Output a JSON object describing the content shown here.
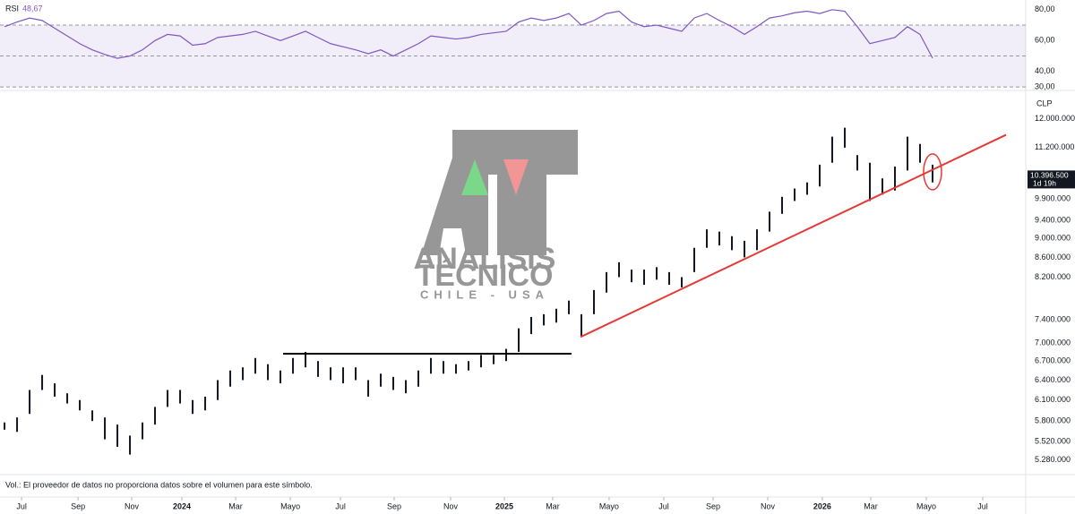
{
  "chart_data": [
    {
      "type": "line",
      "xlim": [
        -0.36,
        81.43
      ],
      "ylim": [
        28.3,
        85.1
      ],
      "yticks": [
        {
          "value": 80,
          "label": "80,00"
        },
        {
          "value": 60,
          "label": "60,00"
        },
        {
          "value": 40,
          "label": "40,00"
        },
        {
          "value": 30,
          "label": "30,00"
        }
      ],
      "band": [
        30,
        70
      ],
      "hlines": [
        70,
        50,
        30
      ],
      "last_value": {
        "value": 48.67,
        "label": "48,67"
      },
      "series": [
        {
          "name": "RSI",
          "color": "#7e57c2",
          "values": [
            69,
            72,
            74.6,
            73,
            68,
            63,
            58,
            54,
            51,
            48.5,
            50,
            54,
            60,
            64,
            63,
            57,
            58,
            62,
            63,
            64,
            66,
            63,
            60,
            63,
            66,
            62,
            58,
            56,
            54,
            51.5,
            54,
            50,
            54,
            58,
            63,
            62,
            61,
            62,
            64,
            65,
            66,
            72,
            74.6,
            73,
            74.6,
            77.5,
            70,
            73,
            77.5,
            79,
            72,
            69,
            70,
            68,
            66,
            74.6,
            77.5,
            73,
            69,
            64,
            69,
            74.6,
            76,
            78,
            79,
            77.5,
            80,
            79,
            69,
            58,
            60,
            62,
            69,
            64,
            48.67
          ]
        }
      ]
    },
    {
      "type": "ohlc",
      "unit": "CLP",
      "log_scale": true,
      "color": "#131722",
      "xlim": [
        -0.36,
        81.43
      ],
      "ylim": [
        5120000,
        12770000
      ],
      "yticks": [
        {
          "value": 12000000,
          "label": "12.000.000"
        },
        {
          "value": 11200000,
          "label": "11.200.000"
        },
        {
          "value": 9900000,
          "label": "9.900.000"
        },
        {
          "value": 9400000,
          "label": "9.400.000"
        },
        {
          "value": 9000000,
          "label": "9.000.000"
        },
        {
          "value": 8600000,
          "label": "8.600.000"
        },
        {
          "value": 8200000,
          "label": "8.200.000"
        },
        {
          "value": 7400000,
          "label": "7.400.000"
        },
        {
          "value": 7000000,
          "label": "7.000.000"
        },
        {
          "value": 6700000,
          "label": "6.700.000"
        },
        {
          "value": 6400000,
          "label": "6.400.000"
        },
        {
          "value": 6100000,
          "label": "6.100.000"
        },
        {
          "value": 5800000,
          "label": "5.800.000"
        },
        {
          "value": 5520000,
          "label": "5.520.000"
        },
        {
          "value": 5280000,
          "label": "5.280.000"
        }
      ],
      "xticks": [
        {
          "value": 1.36,
          "label": "Jul"
        },
        {
          "value": 5.86,
          "label": "Sep"
        },
        {
          "value": 10.14,
          "label": "Nov"
        },
        {
          "value": 14.14,
          "label": "2024"
        },
        {
          "value": 18.43,
          "label": "Mar"
        },
        {
          "value": 22.79,
          "label": "Mayo"
        },
        {
          "value": 26.79,
          "label": "Jul"
        },
        {
          "value": 31.07,
          "label": "Sep"
        },
        {
          "value": 35.57,
          "label": "Nov"
        },
        {
          "value": 39.86,
          "label": "2025"
        },
        {
          "value": 43.71,
          "label": "Mar"
        },
        {
          "value": 48.21,
          "label": "Mayo"
        },
        {
          "value": 52.57,
          "label": "Jul"
        },
        {
          "value": 56.5,
          "label": "Sep"
        },
        {
          "value": 60.86,
          "label": "Nov"
        },
        {
          "value": 65.21,
          "label": "2026"
        },
        {
          "value": 69.07,
          "label": "Mar"
        },
        {
          "value": 73.5,
          "label": "Mayo"
        },
        {
          "value": 78,
          "label": "Jul"
        }
      ],
      "high": [
        5780000,
        5850000,
        6250000,
        6480000,
        6350000,
        6200000,
        6100000,
        5950000,
        5850000,
        5750000,
        5600000,
        5780000,
        6000000,
        6250000,
        6250000,
        6100000,
        6150000,
        6400000,
        6550000,
        6600000,
        6750000,
        6650000,
        6550000,
        6750000,
        6850000,
        6700000,
        6600000,
        6600000,
        6600000,
        6400000,
        6500000,
        6450000,
        6400000,
        6550000,
        6750000,
        6700000,
        6650000,
        6700000,
        6800000,
        6800000,
        6900000,
        7250000,
        7450000,
        7500000,
        7600000,
        7750000,
        7500000,
        7950000,
        8300000,
        8500000,
        8350000,
        8350000,
        8400000,
        8300000,
        8200000,
        8800000,
        9200000,
        9150000,
        9050000,
        8950000,
        9200000,
        9600000,
        9950000,
        10150000,
        10300000,
        10750000,
        11500000,
        11750000,
        11000000,
        10800000,
        10400000,
        10700000,
        11500000,
        11300000,
        10750000
      ],
      "low": [
        5680000,
        5650000,
        5900000,
        6250000,
        6150000,
        6050000,
        5950000,
        5800000,
        5550000,
        5450000,
        5350000,
        5550000,
        5750000,
        6000000,
        6050000,
        5900000,
        5950000,
        6100000,
        6300000,
        6400000,
        6500000,
        6400000,
        6350000,
        6500000,
        6600000,
        6450000,
        6400000,
        6350000,
        6400000,
        6150000,
        6300000,
        6250000,
        6200000,
        6300000,
        6500000,
        6500000,
        6500000,
        6550000,
        6600000,
        6650000,
        6700000,
        6850000,
        7150000,
        7300000,
        7350000,
        7500000,
        7100000,
        7500000,
        7900000,
        8200000,
        8100000,
        8050000,
        8150000,
        8050000,
        8000000,
        8300000,
        8800000,
        8850000,
        8750000,
        8600000,
        8750000,
        9150000,
        9550000,
        9850000,
        10000000,
        10200000,
        10800000,
        11200000,
        10600000,
        9850000,
        10000000,
        10100000,
        10600000,
        10800000,
        10300000
      ],
      "lines": [
        {
          "color": "#000000",
          "x": [
            22.21,
            45.21
          ],
          "y": [
            6820000,
            6820000
          ]
        },
        {
          "color": "#e53935",
          "x": [
            45.93,
            79.86
          ],
          "y": [
            7100000,
            11550000
          ]
        }
      ],
      "last_price": {
        "value": 10396500,
        "label": "10.396.500"
      },
      "countdown": "1d 19h"
    }
  ],
  "footer_note": "Vol.: El proveedor de datos no proporciona datos sobre el volumen para este símbolo.",
  "watermark": {
    "line1": "ANÁLISIS",
    "line2": "TÉCNICO",
    "line3": "CHILE - USA"
  }
}
